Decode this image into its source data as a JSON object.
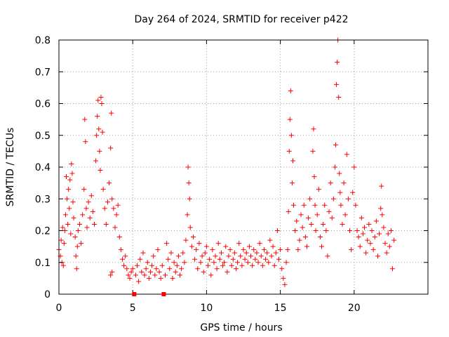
{
  "chart_data": {
    "type": "scatter",
    "title": "Day 264 of 2024, SRMTID for receiver p422",
    "xlabel": "GPS time / hours",
    "ylabel": "SRMTID / TECUs",
    "xlim": [
      0,
      25
    ],
    "ylim": [
      0,
      0.8
    ],
    "xticks": [
      0,
      5,
      10,
      15,
      20
    ],
    "xtick_labels": [
      "0",
      "5",
      "10",
      "15",
      "20"
    ],
    "yticks": [
      0,
      0.1,
      0.2,
      0.3,
      0.4,
      0.5,
      0.6,
      0.7,
      0.8
    ],
    "ytick_labels": [
      "0",
      "0.1",
      "0.2",
      "0.3",
      "0.4",
      "0.5",
      "0.6",
      "0.7",
      "0.8"
    ],
    "grid": true,
    "marker": "plus",
    "color": "#ff0000",
    "gap_marks_x": [
      5.1,
      7.1
    ],
    "series": [
      {
        "name": "SRMTID",
        "points": [
          [
            0.0,
            0.14
          ],
          [
            0.1,
            0.12
          ],
          [
            0.15,
            0.17
          ],
          [
            0.2,
            0.1
          ],
          [
            0.25,
            0.21
          ],
          [
            0.3,
            0.09
          ],
          [
            0.35,
            0.16
          ],
          [
            0.4,
            0.2
          ],
          [
            0.45,
            0.25
          ],
          [
            0.5,
            0.37
          ],
          [
            0.55,
            0.3
          ],
          [
            0.6,
            0.22
          ],
          [
            0.65,
            0.33
          ],
          [
            0.7,
            0.27
          ],
          [
            0.75,
            0.36
          ],
          [
            0.8,
            0.19
          ],
          [
            0.85,
            0.41
          ],
          [
            0.9,
            0.38
          ],
          [
            0.95,
            0.29
          ],
          [
            1.0,
            0.24
          ],
          [
            1.1,
            0.18
          ],
          [
            1.15,
            0.12
          ],
          [
            1.2,
            0.08
          ],
          [
            1.25,
            0.15
          ],
          [
            1.3,
            0.2
          ],
          [
            1.4,
            0.22
          ],
          [
            1.5,
            0.16
          ],
          [
            1.6,
            0.25
          ],
          [
            1.7,
            0.33
          ],
          [
            1.75,
            0.55
          ],
          [
            1.8,
            0.48
          ],
          [
            1.85,
            0.27
          ],
          [
            1.9,
            0.21
          ],
          [
            2.0,
            0.29
          ],
          [
            2.1,
            0.24
          ],
          [
            2.2,
            0.31
          ],
          [
            2.3,
            0.26
          ],
          [
            2.4,
            0.22
          ],
          [
            2.5,
            0.42
          ],
          [
            2.55,
            0.5
          ],
          [
            2.6,
            0.56
          ],
          [
            2.65,
            0.61
          ],
          [
            2.7,
            0.52
          ],
          [
            2.75,
            0.45
          ],
          [
            2.8,
            0.39
          ],
          [
            2.85,
            0.62
          ],
          [
            2.9,
            0.6
          ],
          [
            2.95,
            0.51
          ],
          [
            3.0,
            0.33
          ],
          [
            3.1,
            0.27
          ],
          [
            3.2,
            0.22
          ],
          [
            3.3,
            0.29
          ],
          [
            3.4,
            0.35
          ],
          [
            3.5,
            0.46
          ],
          [
            3.55,
            0.57
          ],
          [
            3.6,
            0.3
          ],
          [
            3.7,
            0.27
          ],
          [
            3.8,
            0.21
          ],
          [
            3.9,
            0.25
          ],
          [
            4.0,
            0.28
          ],
          [
            3.5,
            0.06
          ],
          [
            3.6,
            0.07
          ],
          [
            4.1,
            0.18
          ],
          [
            4.2,
            0.14
          ],
          [
            4.3,
            0.11
          ],
          [
            4.4,
            0.09
          ],
          [
            4.5,
            0.12
          ],
          [
            4.6,
            0.08
          ],
          [
            4.7,
            0.06
          ],
          [
            4.8,
            0.05
          ],
          [
            4.9,
            0.07
          ],
          [
            5.0,
            0.08
          ],
          [
            5.2,
            0.06
          ],
          [
            5.3,
            0.09
          ],
          [
            5.4,
            0.04
          ],
          [
            5.5,
            0.11
          ],
          [
            5.6,
            0.07
          ],
          [
            5.7,
            0.13
          ],
          [
            5.8,
            0.06
          ],
          [
            5.9,
            0.08
          ],
          [
            6.0,
            0.1
          ],
          [
            6.1,
            0.05
          ],
          [
            6.2,
            0.07
          ],
          [
            6.3,
            0.09
          ],
          [
            6.4,
            0.12
          ],
          [
            6.5,
            0.06
          ],
          [
            6.6,
            0.08
          ],
          [
            6.7,
            0.14
          ],
          [
            6.8,
            0.07
          ],
          [
            6.9,
            0.05
          ],
          [
            7.0,
            0.09
          ],
          [
            7.2,
            0.06
          ],
          [
            7.3,
            0.16
          ],
          [
            7.4,
            0.11
          ],
          [
            7.5,
            0.08
          ],
          [
            7.6,
            0.13
          ],
          [
            7.7,
            0.05
          ],
          [
            7.8,
            0.1
          ],
          [
            7.9,
            0.07
          ],
          [
            8.0,
            0.09
          ],
          [
            8.1,
            0.12
          ],
          [
            8.2,
            0.06
          ],
          [
            8.3,
            0.08
          ],
          [
            8.4,
            0.13
          ],
          [
            8.5,
            0.1
          ],
          [
            8.6,
            0.17
          ],
          [
            8.7,
            0.25
          ],
          [
            8.75,
            0.4
          ],
          [
            8.8,
            0.35
          ],
          [
            8.85,
            0.3
          ],
          [
            8.9,
            0.21
          ],
          [
            9.0,
            0.15
          ],
          [
            9.1,
            0.18
          ],
          [
            9.2,
            0.11
          ],
          [
            9.3,
            0.14
          ],
          [
            9.4,
            0.08
          ],
          [
            9.5,
            0.16
          ],
          [
            9.6,
            0.1
          ],
          [
            9.7,
            0.12
          ],
          [
            9.8,
            0.07
          ],
          [
            9.9,
            0.13
          ],
          [
            10.0,
            0.15
          ],
          [
            10.1,
            0.09
          ],
          [
            10.2,
            0.11
          ],
          [
            10.3,
            0.06
          ],
          [
            10.4,
            0.14
          ],
          [
            10.5,
            0.1
          ],
          [
            10.6,
            0.12
          ],
          [
            10.7,
            0.08
          ],
          [
            10.8,
            0.16
          ],
          [
            10.9,
            0.11
          ],
          [
            11.0,
            0.13
          ],
          [
            11.1,
            0.09
          ],
          [
            11.2,
            0.1
          ],
          [
            11.3,
            0.15
          ],
          [
            11.4,
            0.07
          ],
          [
            11.5,
            0.12
          ],
          [
            11.6,
            0.14
          ],
          [
            11.7,
            0.09
          ],
          [
            11.8,
            0.11
          ],
          [
            11.9,
            0.13
          ],
          [
            12.0,
            0.08
          ],
          [
            12.1,
            0.1
          ],
          [
            12.2,
            0.16
          ],
          [
            12.3,
            0.12
          ],
          [
            12.4,
            0.09
          ],
          [
            12.5,
            0.14
          ],
          [
            12.6,
            0.11
          ],
          [
            12.7,
            0.13
          ],
          [
            12.8,
            0.1
          ],
          [
            12.9,
            0.15
          ],
          [
            13.0,
            0.12
          ],
          [
            13.1,
            0.09
          ],
          [
            13.2,
            0.14
          ],
          [
            13.3,
            0.11
          ],
          [
            13.4,
            0.13
          ],
          [
            13.5,
            0.1
          ],
          [
            13.6,
            0.16
          ],
          [
            13.7,
            0.12
          ],
          [
            13.8,
            0.09
          ],
          [
            13.9,
            0.14
          ],
          [
            14.0,
            0.11
          ],
          [
            14.1,
            0.13
          ],
          [
            14.2,
            0.1
          ],
          [
            14.3,
            0.17
          ],
          [
            14.4,
            0.12
          ],
          [
            14.5,
            0.15
          ],
          [
            14.6,
            0.09
          ],
          [
            14.7,
            0.13
          ],
          [
            14.8,
            0.2
          ],
          [
            14.9,
            0.11
          ],
          [
            15.0,
            0.14
          ],
          [
            15.1,
            0.08
          ],
          [
            15.2,
            0.05
          ],
          [
            15.3,
            0.03
          ],
          [
            15.4,
            0.1
          ],
          [
            15.5,
            0.14
          ],
          [
            15.55,
            0.26
          ],
          [
            15.6,
            0.45
          ],
          [
            15.65,
            0.55
          ],
          [
            15.7,
            0.64
          ],
          [
            15.75,
            0.5
          ],
          [
            15.8,
            0.35
          ],
          [
            15.85,
            0.42
          ],
          [
            15.9,
            0.28
          ],
          [
            16.0,
            0.2
          ],
          [
            16.1,
            0.23
          ],
          [
            16.2,
            0.14
          ],
          [
            16.3,
            0.17
          ],
          [
            16.4,
            0.25
          ],
          [
            16.5,
            0.21
          ],
          [
            16.6,
            0.28
          ],
          [
            16.7,
            0.18
          ],
          [
            16.8,
            0.15
          ],
          [
            16.9,
            0.24
          ],
          [
            17.0,
            0.3
          ],
          [
            17.1,
            0.22
          ],
          [
            17.2,
            0.45
          ],
          [
            17.25,
            0.52
          ],
          [
            17.3,
            0.37
          ],
          [
            17.35,
            0.28
          ],
          [
            17.4,
            0.2
          ],
          [
            17.5,
            0.25
          ],
          [
            17.6,
            0.33
          ],
          [
            17.7,
            0.18
          ],
          [
            17.8,
            0.15
          ],
          [
            17.9,
            0.22
          ],
          [
            18.0,
            0.28
          ],
          [
            18.1,
            0.2
          ],
          [
            18.2,
            0.12
          ],
          [
            18.3,
            0.26
          ],
          [
            18.4,
            0.35
          ],
          [
            18.5,
            0.24
          ],
          [
            18.6,
            0.3
          ],
          [
            18.7,
            0.4
          ],
          [
            18.75,
            0.47
          ],
          [
            18.8,
            0.66
          ],
          [
            18.85,
            0.73
          ],
          [
            18.9,
            0.8
          ],
          [
            18.95,
            0.62
          ],
          [
            19.0,
            0.38
          ],
          [
            19.05,
            0.32
          ],
          [
            19.1,
            0.28
          ],
          [
            19.2,
            0.22
          ],
          [
            19.3,
            0.35
          ],
          [
            19.4,
            0.25
          ],
          [
            19.5,
            0.44
          ],
          [
            19.6,
            0.3
          ],
          [
            19.7,
            0.2
          ],
          [
            19.8,
            0.14
          ],
          [
            19.9,
            0.32
          ],
          [
            20.0,
            0.4
          ],
          [
            20.1,
            0.28
          ],
          [
            20.2,
            0.2
          ],
          [
            20.3,
            0.18
          ],
          [
            20.4,
            0.15
          ],
          [
            20.5,
            0.24
          ],
          [
            20.6,
            0.19
          ],
          [
            20.7,
            0.21
          ],
          [
            20.8,
            0.13
          ],
          [
            20.9,
            0.17
          ],
          [
            21.0,
            0.22
          ],
          [
            21.1,
            0.16
          ],
          [
            21.2,
            0.2
          ],
          [
            21.3,
            0.14
          ],
          [
            21.4,
            0.18
          ],
          [
            21.5,
            0.23
          ],
          [
            21.6,
            0.12
          ],
          [
            21.7,
            0.19
          ],
          [
            21.8,
            0.27
          ],
          [
            21.85,
            0.34
          ],
          [
            21.9,
            0.25
          ],
          [
            22.0,
            0.21
          ],
          [
            22.1,
            0.16
          ],
          [
            22.2,
            0.13
          ],
          [
            22.3,
            0.19
          ],
          [
            22.4,
            0.15
          ],
          [
            22.5,
            0.2
          ],
          [
            22.6,
            0.08
          ],
          [
            22.7,
            0.17
          ]
        ]
      }
    ]
  }
}
